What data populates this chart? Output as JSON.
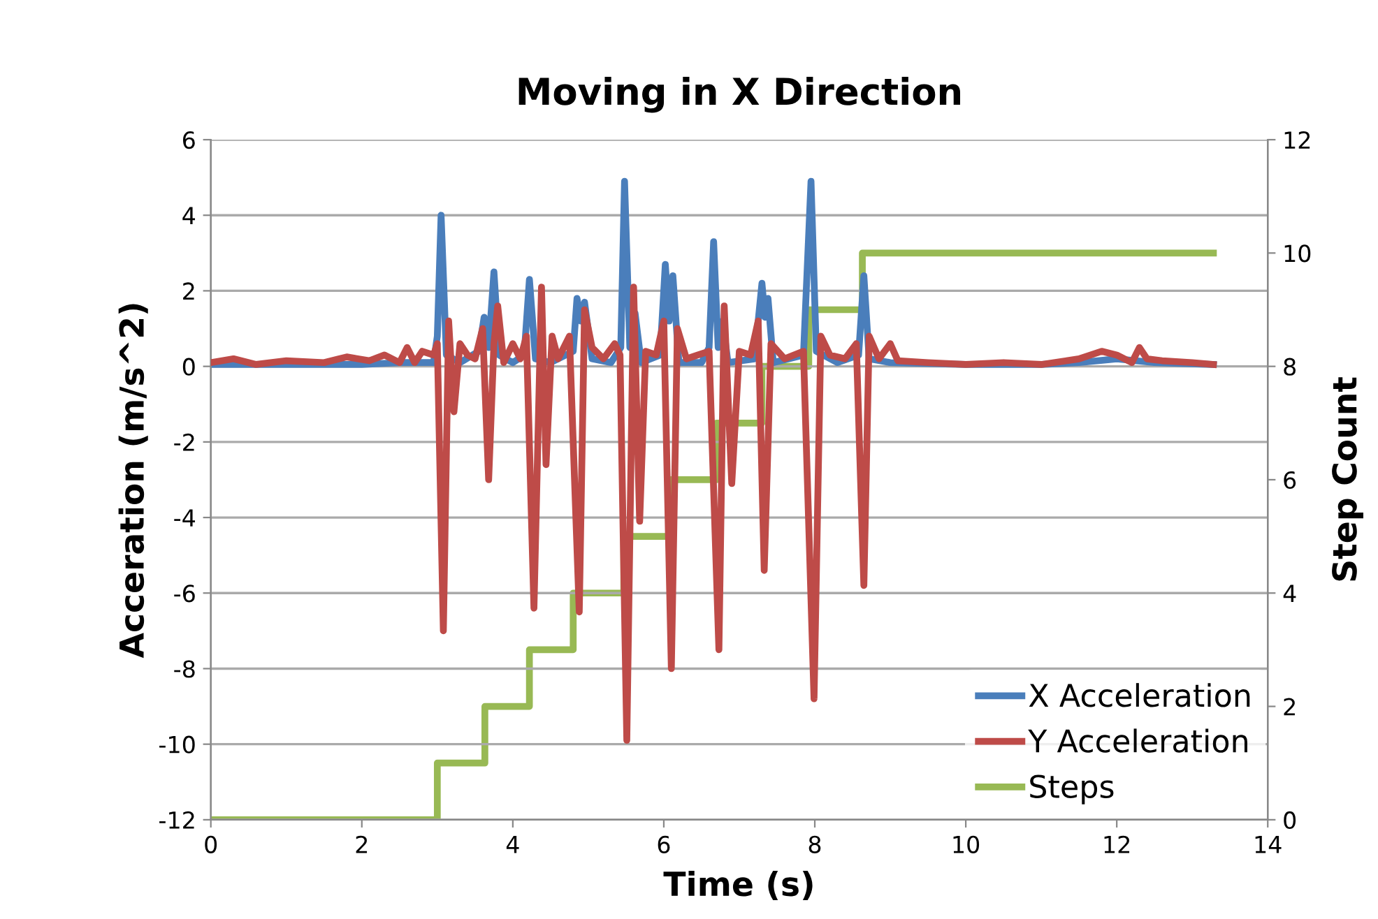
{
  "chart_data": {
    "type": "line",
    "title": "Moving in X Direction",
    "xlabel": "Time (s)",
    "ylabel": "Acceration (m/s^2)",
    "y2label": "Step Count",
    "xlim": [
      0,
      14
    ],
    "xticks": [
      0,
      2,
      4,
      6,
      8,
      10,
      12,
      14
    ],
    "ylim": [
      -12,
      6
    ],
    "yticks": [
      -12,
      -10,
      -8,
      -6,
      -4,
      -2,
      0,
      2,
      4,
      6
    ],
    "y2lim": [
      0,
      12
    ],
    "y2ticks": [
      0,
      2,
      4,
      6,
      8,
      10,
      12
    ],
    "grid": "y",
    "legend": "bottom right",
    "series": [
      {
        "name": "X Acceleration",
        "color": "#4a7ebb",
        "x": [
          0,
          1,
          2,
          2.5,
          2.95,
          3.0,
          3.05,
          3.12,
          3.3,
          3.55,
          3.62,
          3.68,
          3.75,
          3.82,
          4.0,
          4.15,
          4.22,
          4.3,
          4.5,
          4.8,
          4.85,
          4.9,
          4.95,
          5.05,
          5.3,
          5.43,
          5.48,
          5.55,
          5.62,
          5.7,
          5.95,
          6.02,
          6.07,
          6.12,
          6.2,
          6.5,
          6.6,
          6.66,
          6.72,
          6.78,
          6.85,
          7.2,
          7.3,
          7.34,
          7.38,
          7.45,
          7.85,
          7.95,
          8.02,
          8.3,
          8.58,
          8.65,
          8.72,
          9.0,
          10,
          11,
          11.5,
          12,
          12.5,
          13.28
        ],
        "values": [
          0.05,
          0.05,
          0.05,
          0.1,
          0.1,
          0.8,
          4.0,
          0.3,
          0.1,
          0.4,
          1.3,
          0.5,
          2.5,
          0.3,
          0.1,
          0.3,
          2.3,
          0.2,
          0.1,
          0.4,
          1.8,
          1.2,
          1.7,
          0.2,
          0.1,
          0.5,
          4.9,
          0.5,
          1.4,
          0.1,
          0.3,
          2.7,
          1.2,
          2.4,
          0.1,
          0.1,
          0.5,
          3.3,
          0.5,
          1.2,
          0.1,
          0.2,
          2.2,
          1.3,
          1.8,
          0.1,
          0.3,
          4.9,
          0.4,
          0.1,
          0.3,
          2.4,
          0.2,
          0.1,
          0.05,
          0.05,
          0.1,
          0.2,
          0.1,
          0.05
        ]
      },
      {
        "name": "Y Acceleration",
        "color": "#be4b48",
        "x": [
          0,
          0.3,
          0.6,
          1.0,
          1.5,
          1.8,
          2.1,
          2.3,
          2.5,
          2.6,
          2.7,
          2.8,
          2.95,
          3.0,
          3.08,
          3.15,
          3.22,
          3.3,
          3.4,
          3.5,
          3.6,
          3.68,
          3.75,
          3.8,
          3.88,
          4.0,
          4.1,
          4.18,
          4.28,
          4.38,
          4.44,
          4.52,
          4.6,
          4.75,
          4.88,
          4.95,
          5.05,
          5.2,
          5.35,
          5.42,
          5.51,
          5.6,
          5.68,
          5.76,
          5.9,
          6.0,
          6.1,
          6.18,
          6.3,
          6.45,
          6.6,
          6.73,
          6.8,
          6.9,
          7.0,
          7.15,
          7.25,
          7.33,
          7.42,
          7.6,
          7.85,
          7.99,
          8.08,
          8.2,
          8.4,
          8.55,
          8.65,
          8.72,
          8.85,
          9.0,
          9.1,
          9.5,
          10,
          10.5,
          11,
          11.5,
          11.8,
          12.0,
          12.2,
          12.3,
          12.4,
          12.6,
          13.0,
          13.28
        ],
        "values": [
          0.1,
          0.2,
          0.05,
          0.15,
          0.1,
          0.25,
          0.15,
          0.3,
          0.1,
          0.5,
          0.1,
          0.4,
          0.3,
          0.6,
          -7.0,
          1.2,
          -1.2,
          0.6,
          0.3,
          0.2,
          1.0,
          -3.0,
          0.6,
          1.6,
          0.1,
          0.6,
          0.2,
          0.8,
          -6.4,
          2.1,
          -2.6,
          0.8,
          0.2,
          0.8,
          -6.5,
          1.5,
          0.5,
          0.2,
          0.6,
          0.3,
          -9.9,
          2.1,
          -4.1,
          0.4,
          0.3,
          1.2,
          -8.0,
          1.0,
          0.2,
          0.3,
          0.4,
          -7.5,
          1.6,
          -3.1,
          0.4,
          0.3,
          1.2,
          -5.4,
          0.6,
          0.2,
          0.4,
          -8.8,
          0.8,
          0.3,
          0.2,
          0.6,
          -5.8,
          0.8,
          0.2,
          0.6,
          0.15,
          0.1,
          0.05,
          0.1,
          0.05,
          0.2,
          0.4,
          0.3,
          0.1,
          0.5,
          0.2,
          0.15,
          0.1,
          0.05
        ]
      },
      {
        "name": "Steps",
        "type": "step",
        "axis": "y2",
        "color": "#98b954",
        "x": [
          0,
          3.0,
          3.63,
          4.22,
          4.8,
          5.47,
          6.07,
          6.7,
          7.3,
          7.92,
          8.63,
          13.28
        ],
        "values": [
          0,
          1,
          2,
          3,
          4,
          5,
          6,
          7,
          8,
          9,
          10,
          10
        ]
      }
    ]
  }
}
